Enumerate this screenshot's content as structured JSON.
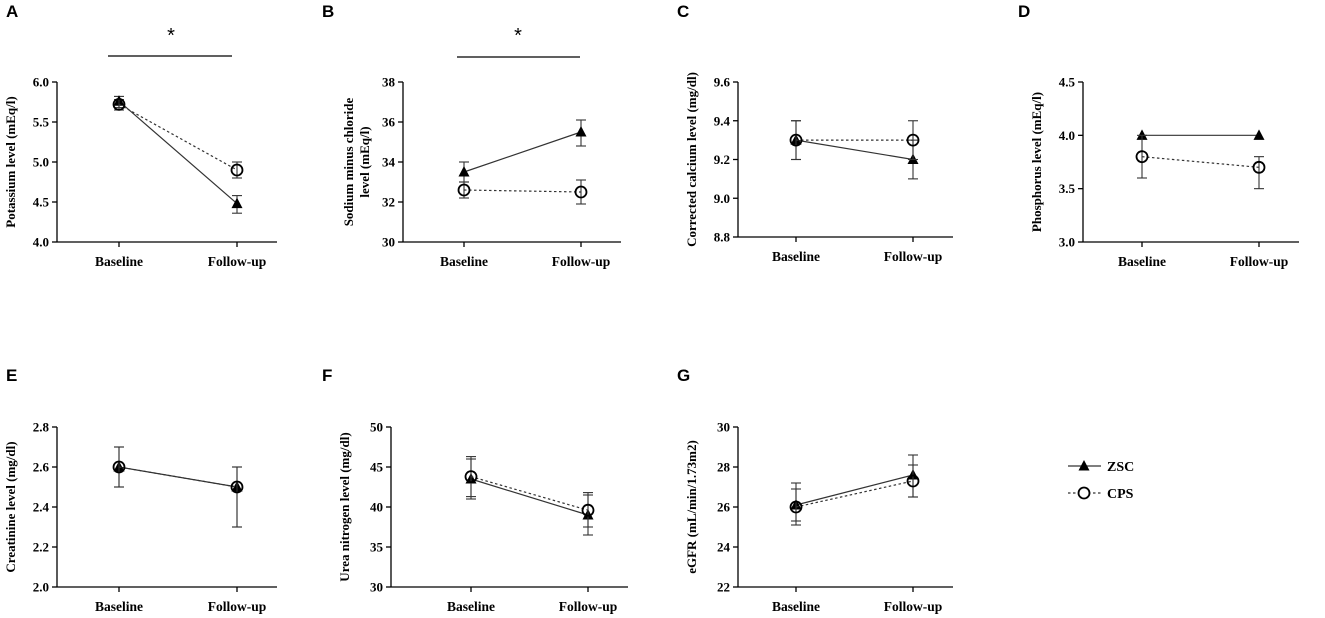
{
  "legend": [
    {
      "name": "ZSC",
      "marker": "filled-triangle",
      "line": "solid"
    },
    {
      "name": "CPS",
      "marker": "open-circle",
      "line": "dotted"
    }
  ],
  "chart_data": [
    {
      "panel": "A",
      "type": "line",
      "ylabel": "Potassium level (mEq/l)",
      "categories": [
        "Baseline",
        "Follow-up"
      ],
      "ylim": [
        4.0,
        6.0
      ],
      "yticks": [
        4.0,
        4.5,
        5.0,
        5.5,
        6.0
      ],
      "tick_decimals": 1,
      "significance": "*",
      "series": [
        {
          "name": "ZSC",
          "values": [
            5.76,
            4.48
          ],
          "err_low": [
            5.68,
            4.36
          ],
          "err_high": [
            5.82,
            4.58
          ]
        },
        {
          "name": "CPS",
          "values": [
            5.72,
            4.9
          ],
          "err_low": [
            5.65,
            4.8
          ],
          "err_high": [
            5.78,
            5.0
          ]
        }
      ]
    },
    {
      "panel": "B",
      "type": "line",
      "ylabel": [
        "Sodium minus chloride",
        "level (mEq/l)"
      ],
      "categories": [
        "Baseline",
        "Follow-up"
      ],
      "ylim": [
        30,
        38
      ],
      "yticks": [
        30,
        32,
        34,
        36,
        38
      ],
      "tick_decimals": 0,
      "significance": "*",
      "series": [
        {
          "name": "ZSC",
          "values": [
            33.5,
            35.5
          ],
          "err_low": [
            33.0,
            34.8
          ],
          "err_high": [
            34.0,
            36.1
          ]
        },
        {
          "name": "CPS",
          "values": [
            32.6,
            32.5
          ],
          "err_low": [
            32.2,
            31.9
          ],
          "err_high": [
            33.0,
            33.1
          ]
        }
      ]
    },
    {
      "panel": "C",
      "type": "line",
      "ylabel": "Corrected calcium level (mg/dl)",
      "categories": [
        "Baseline",
        "Follow-up"
      ],
      "ylim": [
        8.8,
        9.6
      ],
      "yticks": [
        8.8,
        9.0,
        9.2,
        9.4,
        9.6
      ],
      "tick_decimals": 1,
      "significance": "",
      "series": [
        {
          "name": "ZSC",
          "values": [
            9.3,
            9.2
          ],
          "err_low": [
            9.2,
            9.1
          ],
          "err_high": [
            9.4,
            9.3
          ]
        },
        {
          "name": "CPS",
          "values": [
            9.3,
            9.3
          ],
          "err_low": [
            9.2,
            9.2
          ],
          "err_high": [
            9.4,
            9.4
          ]
        }
      ]
    },
    {
      "panel": "D",
      "type": "line",
      "ylabel": "Phosphorus level (mEq/l)",
      "categories": [
        "Baseline",
        "Follow-up"
      ],
      "ylim": [
        3.0,
        4.5
      ],
      "yticks": [
        3.0,
        3.5,
        4.0,
        4.5
      ],
      "tick_decimals": 1,
      "significance": "",
      "series": [
        {
          "name": "ZSC",
          "values": [
            4.0,
            4.0
          ],
          "err_low": [
            4.0,
            4.0
          ],
          "err_high": [
            4.0,
            4.0
          ]
        },
        {
          "name": "CPS",
          "values": [
            3.8,
            3.7
          ],
          "err_low": [
            3.6,
            3.5
          ],
          "err_high": [
            4.0,
            3.8
          ]
        }
      ]
    },
    {
      "panel": "E",
      "type": "line",
      "ylabel": "Creatinine level (mg/dl)",
      "categories": [
        "Baseline",
        "Follow-up"
      ],
      "ylim": [
        2.0,
        2.8
      ],
      "yticks": [
        2.0,
        2.2,
        2.4,
        2.6,
        2.8
      ],
      "tick_decimals": 1,
      "significance": "",
      "series": [
        {
          "name": "ZSC",
          "values": [
            2.6,
            2.5
          ],
          "err_low": [
            2.5,
            2.3
          ],
          "err_high": [
            2.7,
            2.6
          ]
        },
        {
          "name": "CPS",
          "values": [
            2.6,
            2.5
          ],
          "err_low": [
            2.5,
            2.3
          ],
          "err_high": [
            2.7,
            2.6
          ]
        }
      ]
    },
    {
      "panel": "F",
      "type": "line",
      "ylabel": "Urea nitrogen level (mg/dl)",
      "categories": [
        "Baseline",
        "Follow-up"
      ],
      "ylim": [
        30,
        50
      ],
      "yticks": [
        30,
        35,
        40,
        45,
        50
      ],
      "tick_decimals": 0,
      "significance": "",
      "series": [
        {
          "name": "ZSC",
          "values": [
            43.5,
            39.0
          ],
          "err_low": [
            41.0,
            36.5
          ],
          "err_high": [
            46.0,
            41.5
          ]
        },
        {
          "name": "CPS",
          "values": [
            43.8,
            39.6
          ],
          "err_low": [
            41.3,
            37.5
          ],
          "err_high": [
            46.3,
            41.8
          ]
        }
      ]
    },
    {
      "panel": "G",
      "type": "line",
      "ylabel": "eGFR (mL/min/1.73m2)",
      "categories": [
        "Baseline",
        "Follow-up"
      ],
      "ylim": [
        22,
        30
      ],
      "yticks": [
        22,
        24,
        26,
        28,
        30
      ],
      "tick_decimals": 0,
      "significance": "",
      "series": [
        {
          "name": "ZSC",
          "values": [
            26.1,
            27.6
          ],
          "err_low": [
            25.1,
            26.5
          ],
          "err_high": [
            27.2,
            28.6
          ]
        },
        {
          "name": "CPS",
          "values": [
            26.0,
            27.3
          ],
          "err_low": [
            25.3,
            26.5
          ],
          "err_high": [
            26.9,
            28.1
          ]
        }
      ]
    }
  ]
}
